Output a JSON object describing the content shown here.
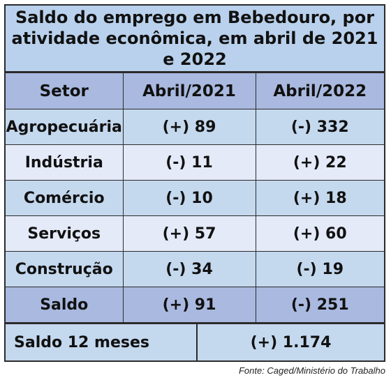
{
  "title": {
    "line1": "Saldo do emprego em Bebedouro, por",
    "line2": "atividade econômica, em abril de 2021 e 2022"
  },
  "table": {
    "headers": [
      "Setor",
      "Abril/2021",
      "Abril/2022"
    ],
    "rows": [
      [
        "Agropecuária",
        "(+) 89",
        "(-) 332"
      ],
      [
        "Indústria",
        "(-) 11",
        "(+) 22"
      ],
      [
        "Comércio",
        "(-) 10",
        "(+) 18"
      ],
      [
        "Serviços",
        "(+) 57",
        "(+) 60"
      ],
      [
        "Construção",
        "(-) 34",
        "(-) 19"
      ],
      [
        "Saldo",
        "(+) 91",
        "(-) 251"
      ]
    ]
  },
  "footer": {
    "label": "Saldo 12 meses",
    "value": "(+) 1.174"
  },
  "source": "Fonte: Caged/Ministério do Trabalho",
  "colors": {
    "header_bg": "#a9b9df",
    "title_bg": "#b9d1ec",
    "row_light": "#e4eaf8",
    "row_blue": "#c4d8ee",
    "border": "#2b2b2b"
  }
}
